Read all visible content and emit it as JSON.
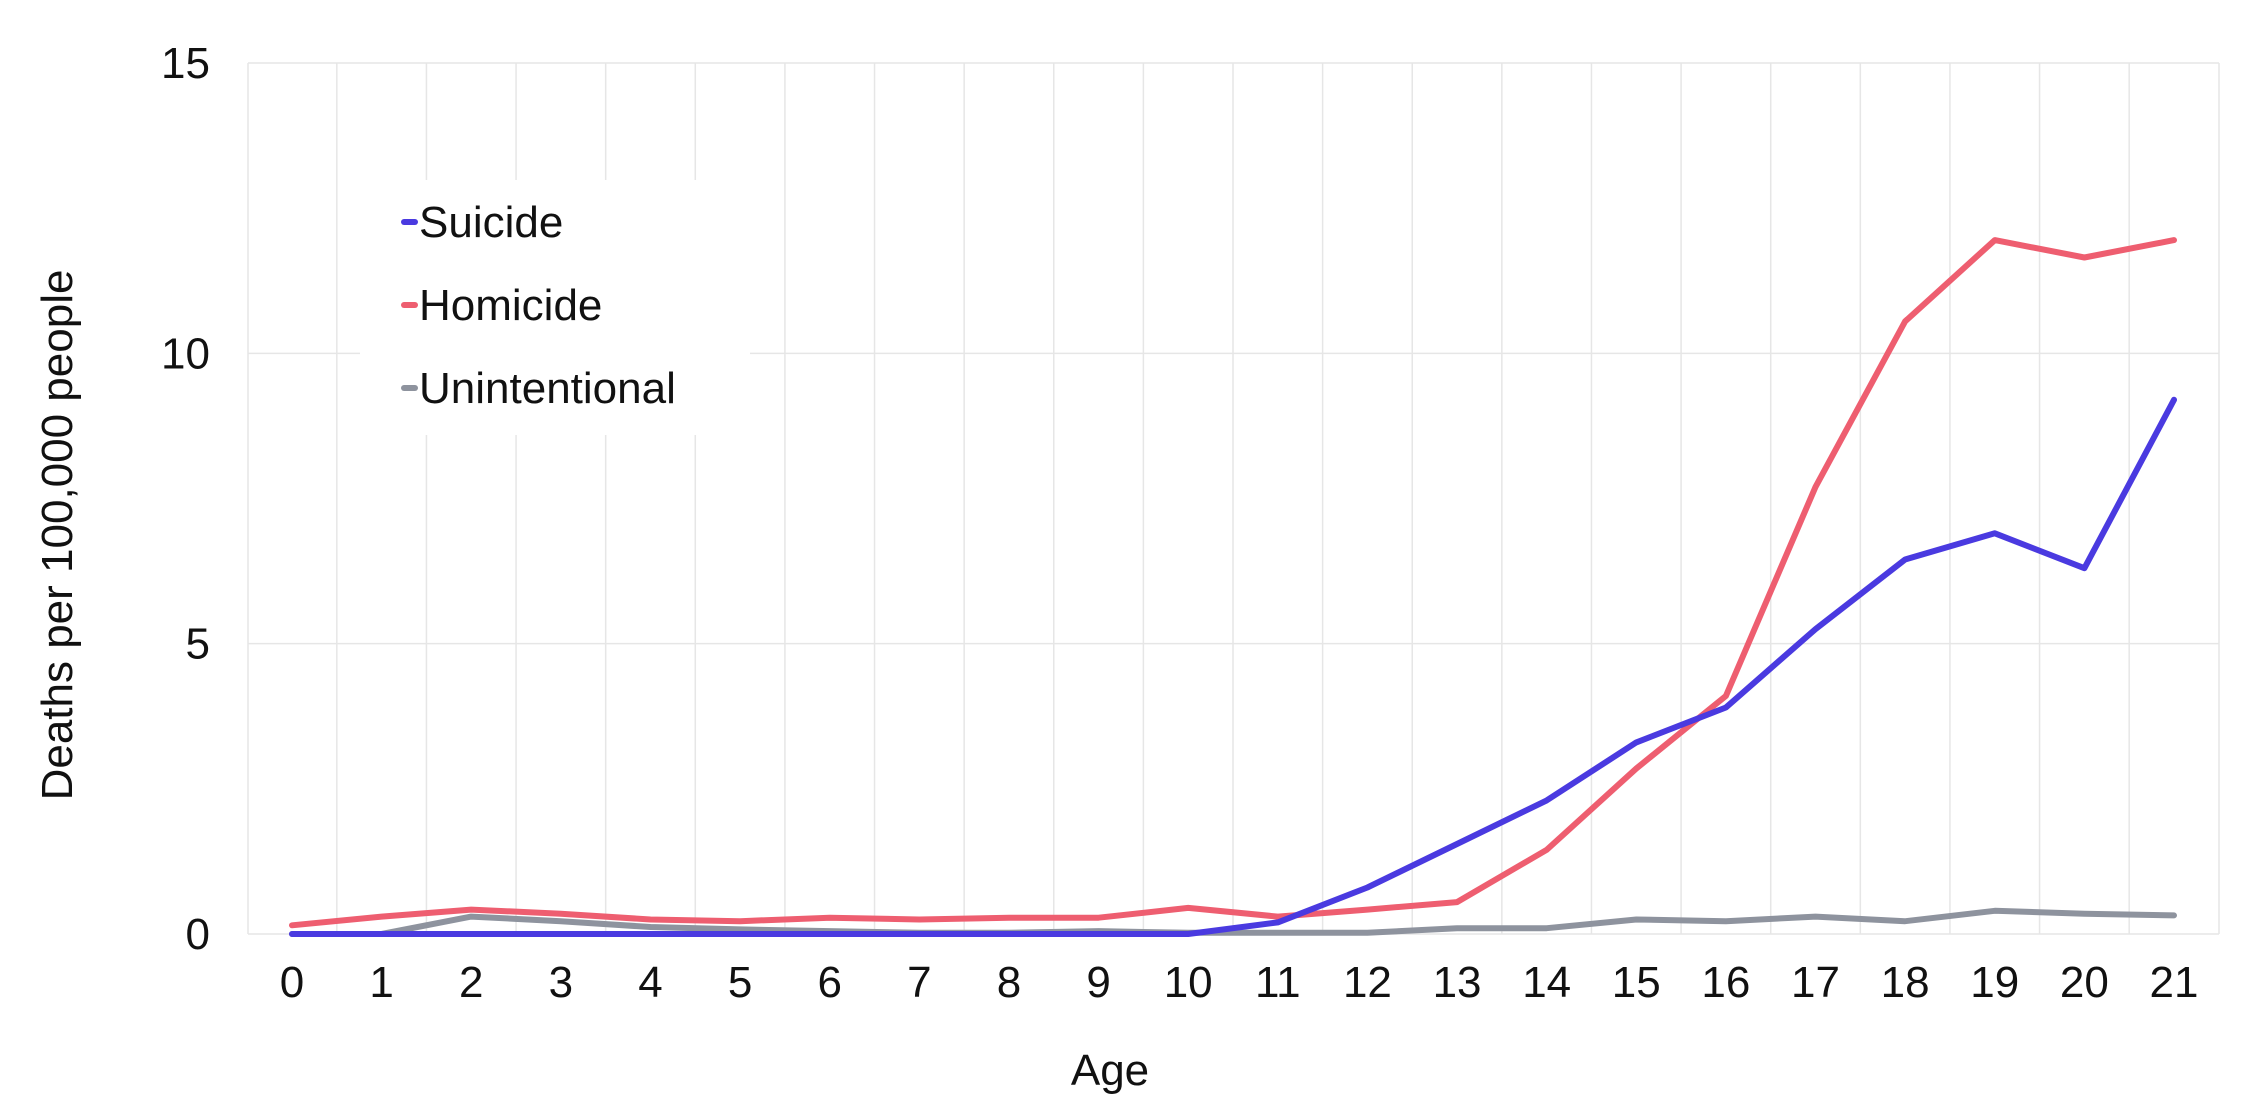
{
  "chart_data": {
    "type": "line",
    "xlabel": "Age",
    "ylabel": "Deaths per 100,000 people",
    "x": [
      0,
      1,
      2,
      3,
      4,
      5,
      6,
      7,
      8,
      9,
      10,
      11,
      12,
      13,
      14,
      15,
      16,
      17,
      18,
      19,
      20,
      21
    ],
    "ylim": [
      0,
      15
    ],
    "yticks": [
      0,
      5,
      10,
      15
    ],
    "grid": true,
    "legend_position": "top-left",
    "series": [
      {
        "name": "Suicide",
        "color": "#4a3ae0",
        "values": [
          0,
          0,
          0,
          0,
          0,
          0,
          0,
          0,
          0,
          0,
          0,
          0.2,
          0.8,
          1.55,
          2.3,
          3.3,
          3.9,
          5.25,
          6.45,
          6.9,
          6.3,
          9.2
        ]
      },
      {
        "name": "Homicide",
        "color": "#ee5e70",
        "values": [
          0.15,
          0.3,
          0.42,
          0.35,
          0.25,
          0.22,
          0.28,
          0.25,
          0.28,
          0.28,
          0.45,
          0.3,
          0.42,
          0.55,
          1.45,
          2.85,
          4.1,
          7.7,
          10.55,
          11.95,
          11.65,
          11.95
        ]
      },
      {
        "name": "Unintentional",
        "color": "#8e939e",
        "values": [
          0,
          0,
          0.3,
          0.22,
          0.12,
          0.08,
          0.05,
          0.02,
          0.02,
          0.05,
          0.02,
          0.02,
          0.02,
          0.1,
          0.1,
          0.25,
          0.22,
          0.3,
          0.22,
          0.4,
          0.35,
          0.32
        ]
      }
    ]
  }
}
